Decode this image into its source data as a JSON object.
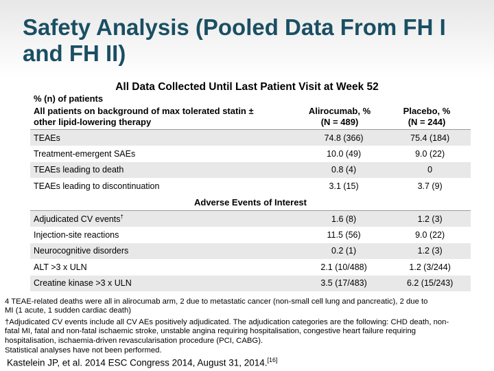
{
  "title": "Safety Analysis (Pooled Data From FH I and FH II)",
  "subtitle": "All Data Collected Until Last Patient Visit at Week 52",
  "header": {
    "line1": "% (n) of patients",
    "line2": "All patients on background of max tolerated statin ±",
    "line3": "other lipid-lowering therapy",
    "col2_line1": "Alirocumab, %",
    "col2_line2": "(N = 489)",
    "col3_line1": "Placebo, %",
    "col3_line2": "(N = 244)"
  },
  "rows": [
    {
      "label": "TEAEs",
      "alirocumab": "74.8 (366)",
      "placebo": "75.4 (184)"
    },
    {
      "label": "Treatment-emergent SAEs",
      "alirocumab": "10.0 (49)",
      "placebo": "9.0 (22)"
    },
    {
      "label": "TEAEs leading to death",
      "alirocumab": "0.8 (4)",
      "placebo": "0"
    },
    {
      "label": "TEAEs leading to discontinuation",
      "alirocumab": "3.1 (15)",
      "placebo": "3.7 (9)"
    }
  ],
  "section_title": "Adverse Events of Interest",
  "interest_rows": [
    {
      "label": "Adjudicated CV events",
      "mark": "†",
      "alirocumab": "1.6 (8)",
      "placebo": "1.2 (3)"
    },
    {
      "label": "Injection-site reactions",
      "alirocumab": "11.5 (56)",
      "placebo": "9.0 (22)"
    },
    {
      "label": "Neurocognitive disorders",
      "alirocumab": "0.2 (1)",
      "placebo": "1.2 (3)"
    },
    {
      "label": "ALT >3 x ULN",
      "alirocumab": "2.1 (10/488)",
      "placebo": "1.2 (3/244)"
    },
    {
      "label": "Creatine kinase >3 x ULN",
      "alirocumab": "3.5 (17/483)",
      "placebo": "6.2 (15/243)"
    }
  ],
  "footnotes": {
    "deaths_line1": "4 TEAE-related deaths were all in alirocumab arm, 2 due to metastatic cancer (non-small cell lung and pancreatic), 2 due to",
    "deaths_line2": "MI (1 acute, 1 sudden cardiac death)",
    "cv_line1": "†Adjudicated CV events include all CV AEs positively adjudicated. The adjudication categories are the following: CHD death, non-",
    "cv_line2": "fatal MI, fatal and non-fatal ischaemic stroke, unstable angina requiring hospitalisation, congestive heart failure requiring",
    "cv_line3": "hospitalisation, ischaemia-driven revascularisation procedure (PCI, CABG).",
    "stats": "Statistical analyses have not been performed."
  },
  "reference": {
    "text": "Kastelein JP, et al. 2014 ESC Congress 2014, August 31, 2014.",
    "superscript": "[16]"
  }
}
